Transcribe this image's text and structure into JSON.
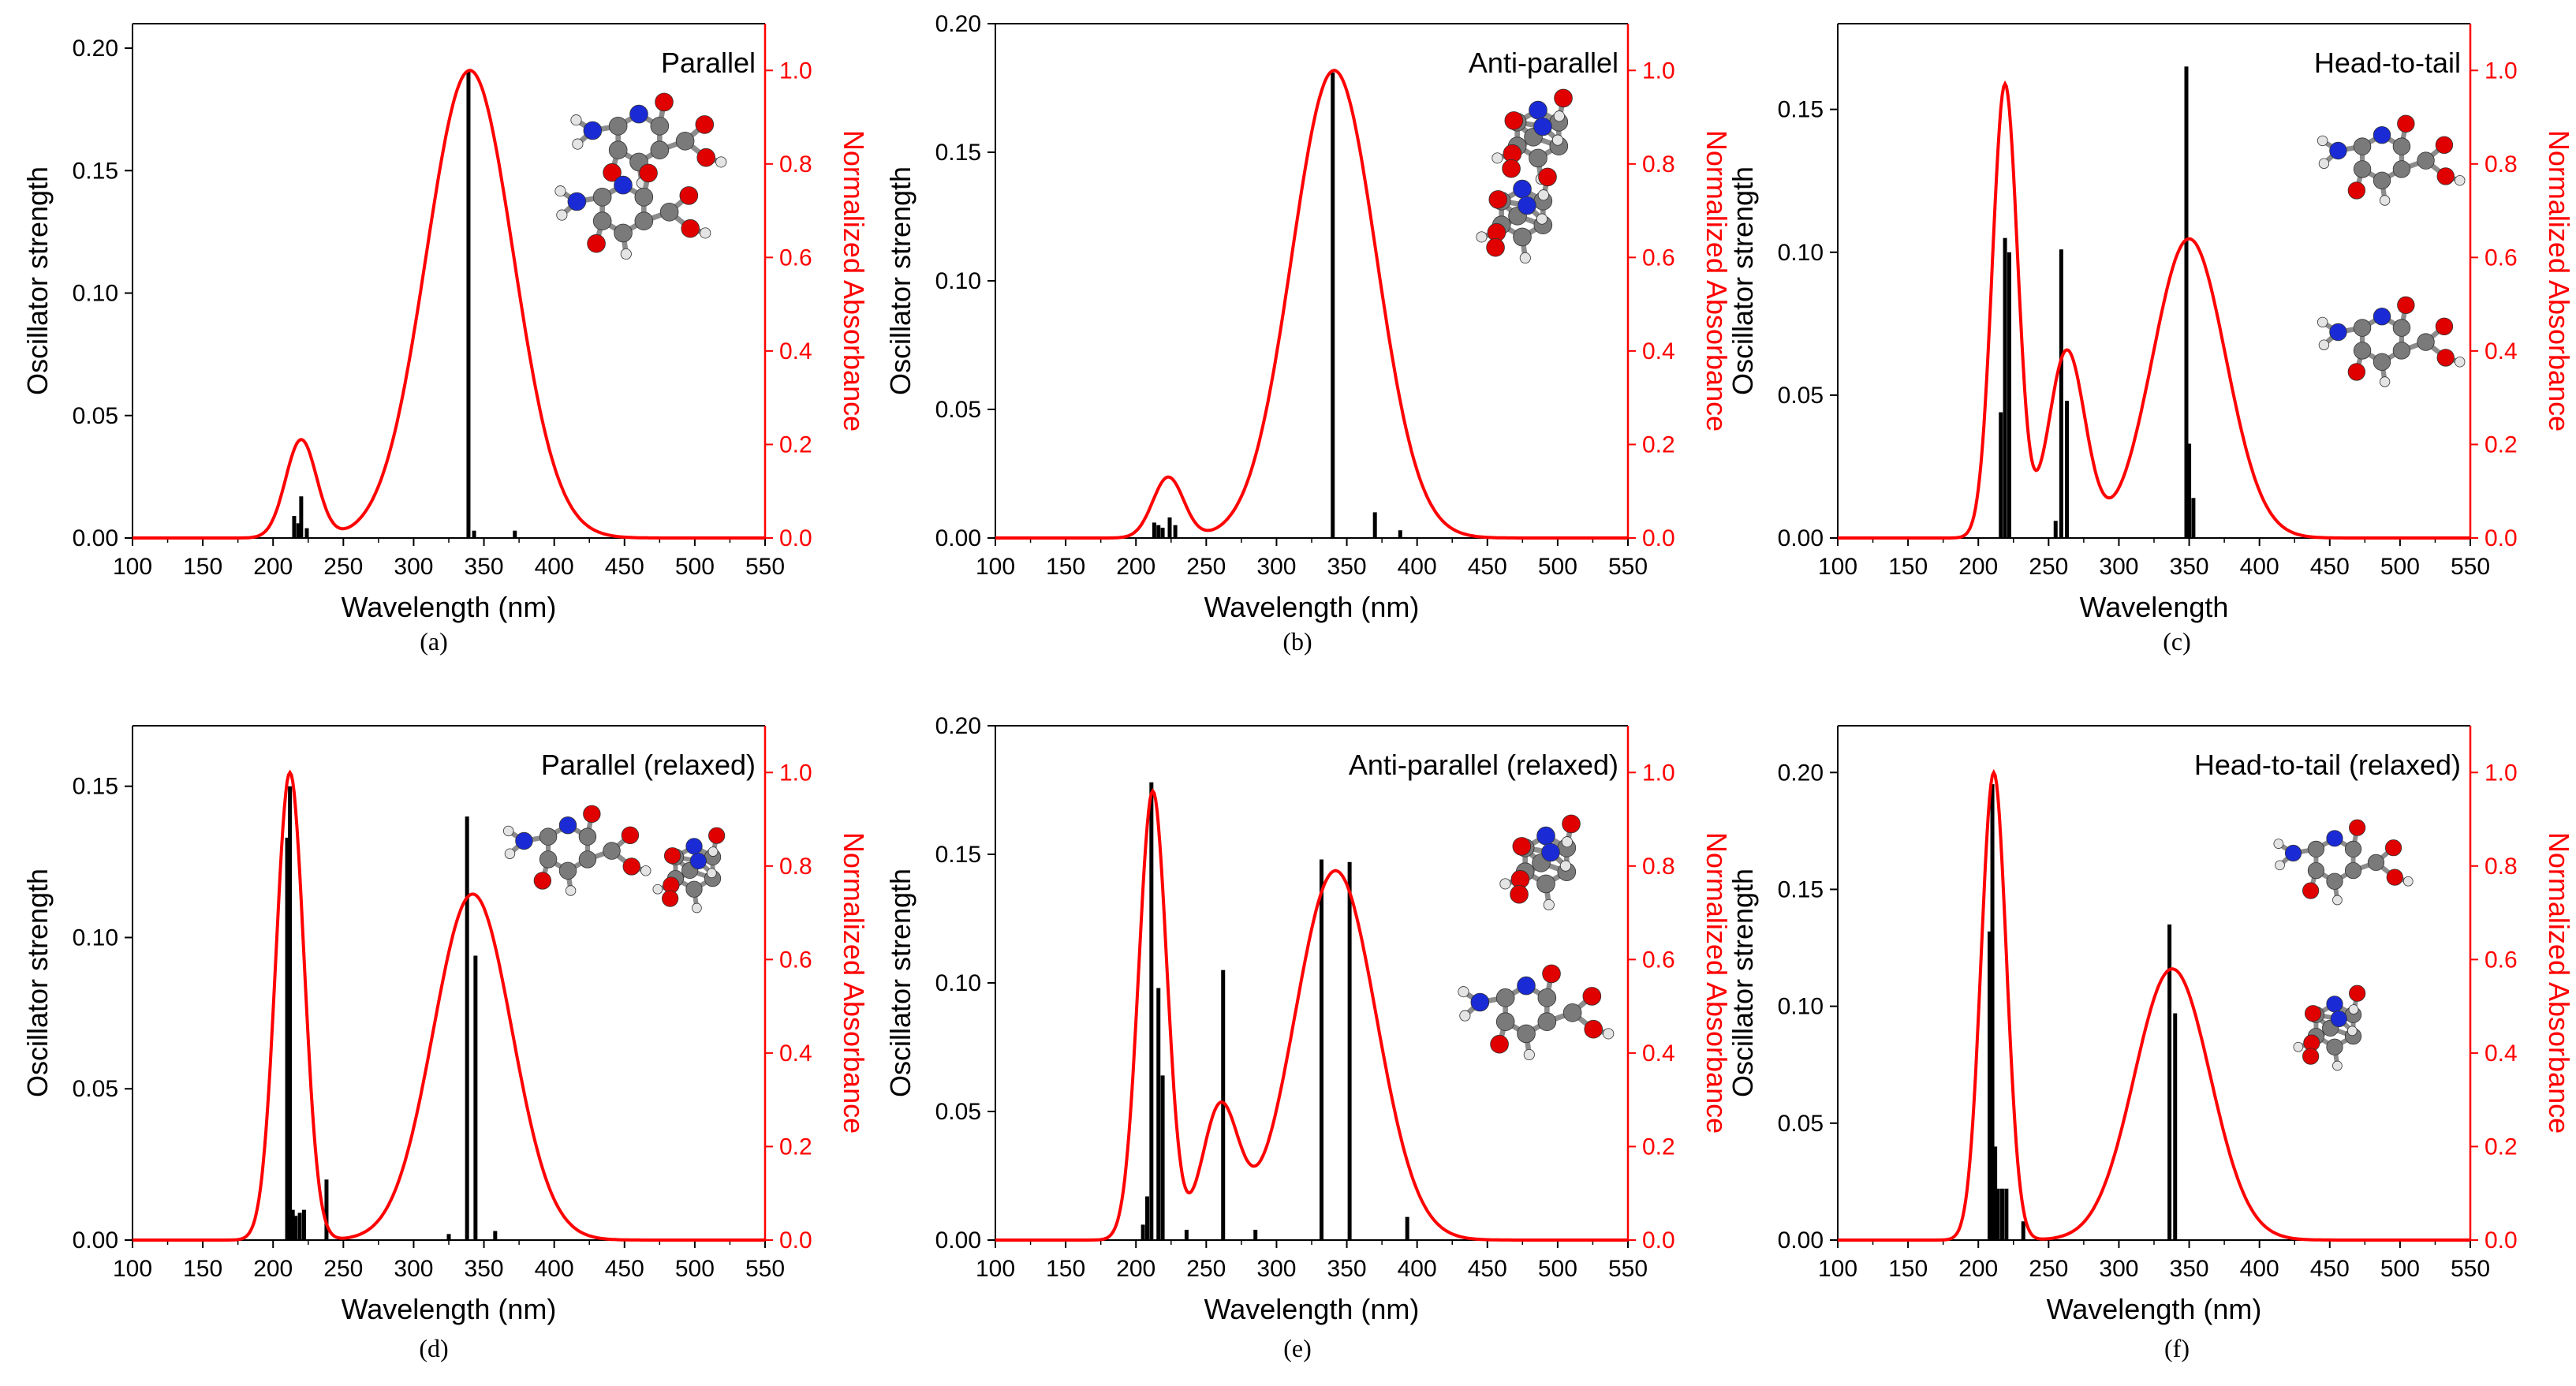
{
  "figure": {
    "colors": {
      "bars": "#000000",
      "curve": "#ff0000",
      "axis_right": "#ff0000"
    },
    "atom_colors": {
      "C": "#7a7a7a",
      "N": "#1a2bd6",
      "O": "#e00000",
      "H": "#e4e4e4"
    }
  },
  "chart_data": [
    {
      "type": "bar+line",
      "title": "Parallel",
      "caption": "(a)",
      "xlabel": "Wavelength (nm)",
      "ylabel": "Oscillator strength",
      "y2label": "Normalized Absorbance",
      "xlim": [
        100,
        550
      ],
      "ylim": [
        0,
        0.21
      ],
      "y2lim": [
        0,
        1.1
      ],
      "xticks": [
        "100",
        "150",
        "200",
        "250",
        "300",
        "350",
        "400",
        "450",
        "500",
        "550"
      ],
      "yticks": [
        "0.00",
        "0.05",
        "0.10",
        "0.15",
        "0.20"
      ],
      "y2ticks": [
        "0.0",
        "0.2",
        "0.4",
        "0.6",
        "0.8",
        "1.0"
      ],
      "sticks": {
        "x": [
          215,
          218,
          220,
          224,
          339,
          343,
          372
        ],
        "y": [
          0.009,
          0.006,
          0.017,
          0.004,
          0.191,
          0.003,
          0.003
        ]
      },
      "bands": [
        {
          "center": 220,
          "amp": 0.21,
          "width": 11
        },
        {
          "center": 340,
          "amp": 1.0,
          "width": 31
        }
      ]
    },
    {
      "type": "bar+line",
      "title": "Anti-parallel",
      "caption": "(b)",
      "xlabel": "Wavelength (nm)",
      "ylabel": "Oscillator strength",
      "y2label": "Normalized Absorbance",
      "xlim": [
        100,
        550
      ],
      "ylim": [
        0,
        0.2
      ],
      "y2lim": [
        0,
        1.1
      ],
      "xticks": [
        "100",
        "150",
        "200",
        "250",
        "300",
        "350",
        "400",
        "450",
        "500",
        "550"
      ],
      "yticks": [
        "0.00",
        "0.05",
        "0.10",
        "0.15",
        "0.20"
      ],
      "y2ticks": [
        "0.0",
        "0.2",
        "0.4",
        "0.6",
        "0.8",
        "1.0"
      ],
      "sticks": {
        "x": [
          213,
          216,
          219,
          224,
          228,
          340,
          370,
          388
        ],
        "y": [
          0.006,
          0.005,
          0.004,
          0.008,
          0.005,
          0.181,
          0.01,
          0.003
        ]
      },
      "bands": [
        {
          "center": 223,
          "amp": 0.13,
          "width": 11
        },
        {
          "center": 341,
          "amp": 1.0,
          "width": 30
        }
      ]
    },
    {
      "type": "bar+line",
      "title": "Head-to-tail",
      "caption": "(c)",
      "xlabel": "Wavelength",
      "ylabel": "Oscillator strength",
      "y2label": "Normalized Absorbance",
      "xlim": [
        100,
        550
      ],
      "ylim": [
        0,
        0.18
      ],
      "y2lim": [
        0,
        1.1
      ],
      "xticks": [
        "100",
        "150",
        "200",
        "250",
        "300",
        "350",
        "400",
        "450",
        "500",
        "550"
      ],
      "yticks": [
        "0.00",
        "0.05",
        "0.10",
        "0.15"
      ],
      "y2ticks": [
        "0.0",
        "0.2",
        "0.4",
        "0.6",
        "0.8",
        "1.0"
      ],
      "sticks": {
        "x": [
          216,
          219,
          222,
          255,
          259,
          263,
          348,
          350,
          353
        ],
        "y": [
          0.044,
          0.105,
          0.1,
          0.006,
          0.101,
          0.048,
          0.165,
          0.033,
          0.014
        ]
      },
      "bands": [
        {
          "center": 219,
          "amp": 0.97,
          "width": 9
        },
        {
          "center": 263,
          "amp": 0.4,
          "width": 13
        },
        {
          "center": 350,
          "amp": 0.64,
          "width": 26
        }
      ]
    },
    {
      "type": "bar+line",
      "title": "Parallel (relaxed)",
      "caption": "(d)",
      "xlabel": "Wavelength (nm)",
      "ylabel": "Oscillator strength",
      "y2label": "Normalized Absorbance",
      "xlim": [
        100,
        550
      ],
      "ylim": [
        0,
        0.17
      ],
      "y2lim": [
        0,
        1.1
      ],
      "xticks": [
        "100",
        "150",
        "200",
        "250",
        "300",
        "350",
        "400",
        "450",
        "500",
        "550"
      ],
      "yticks": [
        "0.00",
        "0.05",
        "0.10",
        "0.15"
      ],
      "y2ticks": [
        "0.0",
        "0.2",
        "0.4",
        "0.6",
        "0.8",
        "1.0"
      ],
      "sticks": {
        "x": [
          210,
          212,
          214,
          216,
          219,
          222,
          238,
          325,
          338,
          344,
          358
        ],
        "y": [
          0.133,
          0.15,
          0.01,
          0.008,
          0.009,
          0.01,
          0.02,
          0.002,
          0.14,
          0.094,
          0.003
        ]
      },
      "bands": [
        {
          "center": 212,
          "amp": 1.0,
          "width": 10
        },
        {
          "center": 342,
          "amp": 0.74,
          "width": 28
        }
      ]
    },
    {
      "type": "bar+line",
      "title": "Anti-parallel (relaxed)",
      "caption": "(e)",
      "xlabel": "Wavelength (nm)",
      "ylabel": "Oscillator strength",
      "y2label": "Normalized Absorbance",
      "xlim": [
        100,
        550
      ],
      "ylim": [
        0,
        0.2
      ],
      "y2lim": [
        0,
        1.1
      ],
      "xticks": [
        "100",
        "150",
        "200",
        "250",
        "300",
        "350",
        "400",
        "450",
        "500",
        "550"
      ],
      "yticks": [
        "0.00",
        "0.05",
        "0.10",
        "0.15",
        "0.20"
      ],
      "y2ticks": [
        "0.0",
        "0.2",
        "0.4",
        "0.6",
        "0.8",
        "1.0"
      ],
      "sticks": {
        "x": [
          205,
          208,
          211,
          216,
          219,
          236,
          262,
          285,
          332,
          352,
          393
        ],
        "y": [
          0.006,
          0.017,
          0.178,
          0.098,
          0.064,
          0.004,
          0.105,
          0.004,
          0.148,
          0.147,
          0.009
        ]
      },
      "bands": [
        {
          "center": 212,
          "amp": 0.96,
          "width": 10
        },
        {
          "center": 260,
          "amp": 0.28,
          "width": 13
        },
        {
          "center": 342,
          "amp": 0.79,
          "width": 29
        }
      ]
    },
    {
      "type": "bar+line",
      "title": "Head-to-tail (relaxed)",
      "caption": "(f)",
      "xlabel": "Wavelength (nm)",
      "ylabel": "Oscillator strength",
      "y2label": "Normalized Absorbance",
      "xlim": [
        100,
        550
      ],
      "ylim": [
        0,
        0.22
      ],
      "y2lim": [
        0,
        1.1
      ],
      "xticks": [
        "100",
        "150",
        "200",
        "250",
        "300",
        "350",
        "400",
        "450",
        "500",
        "550"
      ],
      "yticks": [
        "0.00",
        "0.05",
        "0.10",
        "0.15",
        "0.20"
      ],
      "y2ticks": [
        "0.0",
        "0.2",
        "0.4",
        "0.6",
        "0.8",
        "1.0"
      ],
      "sticks": {
        "x": [
          208,
          210,
          212,
          214,
          217,
          220,
          232,
          336,
          340
        ],
        "y": [
          0.132,
          0.195,
          0.04,
          0.022,
          0.022,
          0.022,
          0.008,
          0.135,
          0.097
        ]
      },
      "bands": [
        {
          "center": 211,
          "amp": 1.0,
          "width": 9
        },
        {
          "center": 338,
          "amp": 0.58,
          "width": 27
        }
      ]
    }
  ]
}
